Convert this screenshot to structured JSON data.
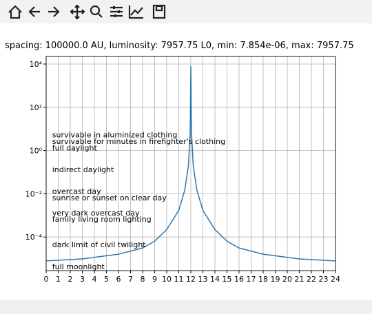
{
  "chart_data": {
    "type": "line",
    "title": "spacing: 100000.0 AU, luminosity: 7957.75 L0, min: 7.854e-06, max: 7957.75",
    "x": [
      0,
      3,
      6,
      8,
      9,
      10,
      11,
      11.5,
      11.8,
      11.95,
      12,
      12.05,
      12.2,
      12.5,
      13,
      14,
      15,
      16,
      18,
      21,
      24
    ],
    "series": [
      {
        "color": "#2a77ac",
        "values": [
          7.854e-06,
          9.7e-06,
          1.6e-05,
          3.1e-05,
          6.4e-05,
          0.00022,
          0.0017,
          0.015,
          0.2,
          7.8,
          7957.75,
          7.8,
          0.2,
          0.015,
          0.0017,
          0.00022,
          6.4e-05,
          3.1e-05,
          1.6e-05,
          9.7e-06,
          7.854e-06
        ]
      }
    ],
    "xlim": [
      0,
      24
    ],
    "xticks": [
      0,
      1,
      2,
      3,
      4,
      5,
      6,
      7,
      8,
      9,
      10,
      11,
      12,
      13,
      14,
      15,
      16,
      17,
      18,
      19,
      20,
      21,
      22,
      23,
      24
    ],
    "ylim": [
      2.79e-06,
      22400
    ],
    "yticks": [
      {
        "value": 0.0001,
        "label": "10⁻⁴"
      },
      {
        "value": 0.01,
        "label": "10⁻²"
      },
      {
        "value": 1,
        "label": "10⁰"
      },
      {
        "value": 100,
        "label": "10²"
      },
      {
        "value": 10000,
        "label": "10⁴"
      }
    ],
    "log_y": true,
    "grid": true,
    "annotations": [
      {
        "text": "survivable in aluminized clothing",
        "x": 0.5,
        "y": 4
      },
      {
        "text": "survivable for minutes in firefighter's clothing",
        "x": 0.5,
        "y": 2
      },
      {
        "text": "full daylight",
        "x": 0.5,
        "y": 1
      },
      {
        "text": "indirect daylight",
        "x": 0.5,
        "y": 0.1
      },
      {
        "text": "overcast day",
        "x": 0.5,
        "y": 0.01
      },
      {
        "text": "sunrise or sunset on clear day",
        "x": 0.5,
        "y": 0.005
      },
      {
        "text": "very dark overcast day",
        "x": 0.5,
        "y": 0.001
      },
      {
        "text": "family living room lighting",
        "x": 0.5,
        "y": 0.0005
      },
      {
        "text": "dark limit of civil twilight",
        "x": 0.5,
        "y": 3.4e-05
      },
      {
        "text": "full moonlight",
        "x": 0.5,
        "y": 3.2e-06
      }
    ]
  }
}
